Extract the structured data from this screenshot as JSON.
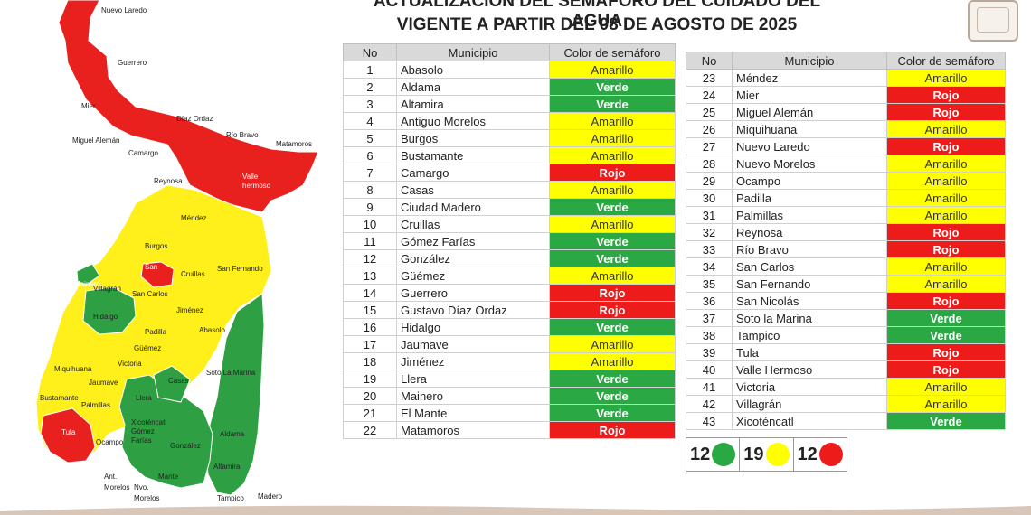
{
  "header": {
    "line1": "ACTUALIZACIÓN DEL SEMÁFORO DEL CUIDADO DEL AGUA",
    "line2": "VIGENTE A PARTIR DEL 08 DE AGOSTO DE 2025"
  },
  "table": {
    "col_no": "No",
    "col_municipio": "Municipio",
    "col_color": "Color de semáforo"
  },
  "colors": {
    "Amarillo": "#ffff00",
    "Verde": "#29a843",
    "Rojo": "#ee1b1b"
  },
  "rows_left": [
    {
      "no": "1",
      "municipio": "Abasolo",
      "color": "Amarillo"
    },
    {
      "no": "2",
      "municipio": "Aldama",
      "color": "Verde"
    },
    {
      "no": "3",
      "municipio": "Altamira",
      "color": "Verde"
    },
    {
      "no": "4",
      "municipio": "Antiguo Morelos",
      "color": "Amarillo"
    },
    {
      "no": "5",
      "municipio": "Burgos",
      "color": "Amarillo"
    },
    {
      "no": "6",
      "municipio": "Bustamante",
      "color": "Amarillo"
    },
    {
      "no": "7",
      "municipio": "Camargo",
      "color": "Rojo"
    },
    {
      "no": "8",
      "municipio": "Casas",
      "color": "Amarillo"
    },
    {
      "no": "9",
      "municipio": "Ciudad Madero",
      "color": "Verde"
    },
    {
      "no": "10",
      "municipio": "Cruillas",
      "color": "Amarillo"
    },
    {
      "no": "11",
      "municipio": "Gómez Farías",
      "color": "Verde"
    },
    {
      "no": "12",
      "municipio": "González",
      "color": "Verde"
    },
    {
      "no": "13",
      "municipio": "Güémez",
      "color": "Amarillo"
    },
    {
      "no": "14",
      "municipio": "Guerrero",
      "color": "Rojo"
    },
    {
      "no": "15",
      "municipio": "Gustavo Díaz Ordaz",
      "color": "Rojo"
    },
    {
      "no": "16",
      "municipio": "Hidalgo",
      "color": "Verde"
    },
    {
      "no": "17",
      "municipio": "Jaumave",
      "color": "Amarillo"
    },
    {
      "no": "18",
      "municipio": "Jiménez",
      "color": "Amarillo"
    },
    {
      "no": "19",
      "municipio": "Llera",
      "color": "Verde"
    },
    {
      "no": "20",
      "municipio": "Mainero",
      "color": "Verde"
    },
    {
      "no": "21",
      "municipio": "El Mante",
      "color": "Verde"
    },
    {
      "no": "22",
      "municipio": "Matamoros",
      "color": "Rojo"
    }
  ],
  "rows_right": [
    {
      "no": "23",
      "municipio": "Méndez",
      "color": "Amarillo"
    },
    {
      "no": "24",
      "municipio": "Mier",
      "color": "Rojo"
    },
    {
      "no": "25",
      "municipio": "Miguel Alemán",
      "color": "Rojo"
    },
    {
      "no": "26",
      "municipio": "Miquihuana",
      "color": "Amarillo"
    },
    {
      "no": "27",
      "municipio": "Nuevo Laredo",
      "color": "Rojo"
    },
    {
      "no": "28",
      "municipio": "Nuevo Morelos",
      "color": "Amarillo"
    },
    {
      "no": "29",
      "municipio": "Ocampo",
      "color": "Amarillo"
    },
    {
      "no": "30",
      "municipio": "Padilla",
      "color": "Amarillo"
    },
    {
      "no": "31",
      "municipio": "Palmillas",
      "color": "Amarillo"
    },
    {
      "no": "32",
      "municipio": "Reynosa",
      "color": "Rojo"
    },
    {
      "no": "33",
      "municipio": "Río Bravo",
      "color": "Rojo"
    },
    {
      "no": "34",
      "municipio": "San Carlos",
      "color": "Amarillo"
    },
    {
      "no": "35",
      "municipio": "San Fernando",
      "color": "Amarillo"
    },
    {
      "no": "36",
      "municipio": "San Nicolás",
      "color": "Rojo"
    },
    {
      "no": "37",
      "municipio": "Soto la Marina",
      "color": "Verde"
    },
    {
      "no": "38",
      "municipio": "Tampico",
      "color": "Verde"
    },
    {
      "no": "39",
      "municipio": "Tula",
      "color": "Rojo"
    },
    {
      "no": "40",
      "municipio": "Valle Hermoso",
      "color": "Rojo"
    },
    {
      "no": "41",
      "municipio": "Victoria",
      "color": "Amarillo"
    },
    {
      "no": "42",
      "municipio": "Villagrán",
      "color": "Amarillo"
    },
    {
      "no": "43",
      "municipio": "Xicoténcatl",
      "color": "Verde"
    }
  ],
  "legend": {
    "verde_count": "12",
    "amarillo_count": "19",
    "rojo_count": "12"
  },
  "map_labels": {
    "nuevo_laredo": "Nuevo Laredo",
    "guerrero": "Guerrero",
    "mier": "Mier",
    "diaz_ordaz": "Díaz Ordaz",
    "rio_bravo": "Río Bravo",
    "matamoros": "Matamoros",
    "miguel_aleman": "Miguel Alemán",
    "camargo": "Camargo",
    "reynosa": "Reynosa",
    "valle": "Valle",
    "hermoso": "hermoso",
    "mendez": "Méndez",
    "burgos": "Burgos",
    "san": "San",
    "cruillas": "Cruillas",
    "san_fernando": "San Fernando",
    "mainero": "Mainero",
    "villagran": "Villagrán",
    "san_carlos": "San Carlos",
    "hidalgo": "Hidalgo",
    "jimenez": "Jiménez",
    "padilla": "Padilla",
    "abasolo": "Abasolo",
    "guemez": "Güémez",
    "miquihuana": "Miquihuana",
    "victoria": "Victoria",
    "jaumave": "Jaumave",
    "soto_la_marina": "Soto La Marina",
    "casas": "Casas",
    "bustamante": "Bustamante",
    "llera": "Llera",
    "palmillas": "Palmillas",
    "xicotencatl": "Xicoténcatl",
    "gomez": "Gómez",
    "farias": "Farías",
    "tula": "Tula",
    "ocampo": "Ocampo",
    "gonzalez": "González",
    "aldama": "Aldama",
    "altamira": "Altamira",
    "mante": "Mante",
    "ant": "Ant.",
    "morelos": "Morelos",
    "nvo": "Nvo.",
    "morelos2": "Morelos",
    "tampico": "Tampico",
    "madero": "Madero"
  }
}
